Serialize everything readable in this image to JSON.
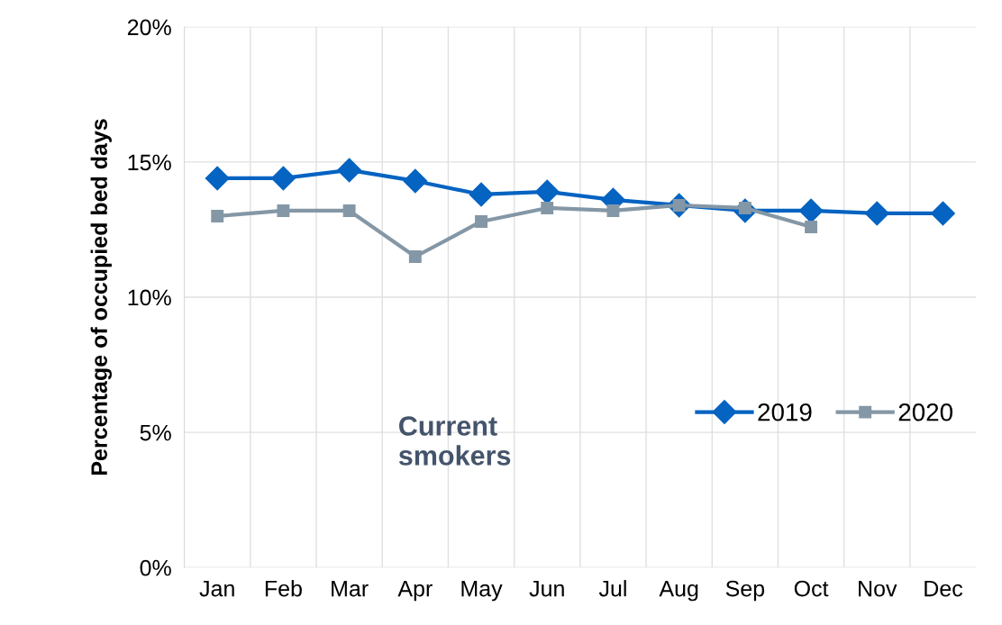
{
  "chart_data": {
    "type": "line",
    "ylabel": "Percentage of occupied bed days",
    "categories": [
      "Jan",
      "Feb",
      "Mar",
      "Apr",
      "May",
      "Jun",
      "Jul",
      "Aug",
      "Sep",
      "Oct",
      "Nov",
      "Dec"
    ],
    "series": [
      {
        "name": "2019",
        "color": "#0563c1",
        "marker": "diamond",
        "values": [
          14.4,
          14.4,
          14.7,
          14.3,
          13.8,
          13.9,
          13.6,
          13.4,
          13.2,
          13.2,
          13.1,
          13.1
        ]
      },
      {
        "name": "2020",
        "color": "#8497a6",
        "marker": "square",
        "values": [
          13.0,
          13.2,
          13.2,
          11.5,
          12.8,
          13.3,
          13.2,
          13.4,
          13.3,
          12.6,
          null,
          null
        ]
      }
    ],
    "ylim": [
      0,
      20
    ],
    "yticks": [
      {
        "value": 0,
        "label": "0%"
      },
      {
        "value": 5,
        "label": "5%"
      },
      {
        "value": 10,
        "label": "10%"
      },
      {
        "value": 15,
        "label": "15%"
      },
      {
        "value": 20,
        "label": "20%"
      }
    ],
    "annotations": [
      "Current\nsmokers"
    ],
    "grid": true,
    "legend": "bottom right",
    "line_style": "solid"
  }
}
